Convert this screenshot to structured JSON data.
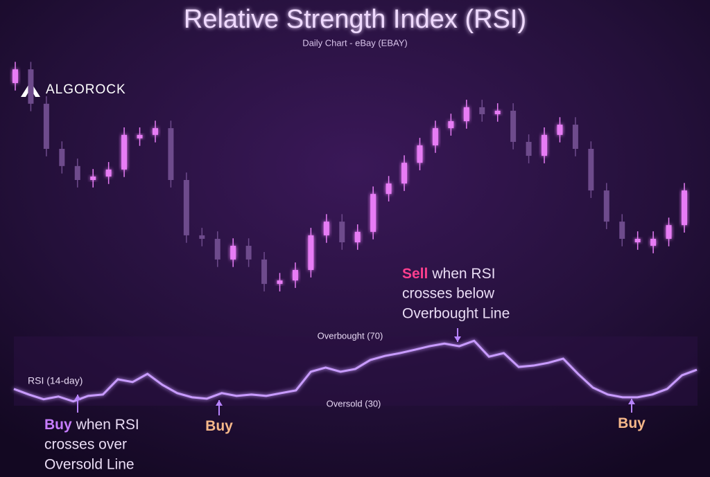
{
  "brand": "ALGOROCK",
  "chart_data": [
    {
      "type": "candlestick",
      "title": "Relative Strength Index (RSI)",
      "subtitle": "Daily Chart - eBay (EBAY)",
      "ylim": [
        0,
        100
      ],
      "up_color": "#e77cf5",
      "down_color": "#6e4b8c",
      "open": [
        88.9,
        94.4,
        80.6,
        62.5,
        55.6,
        50,
        51.4,
        54.2,
        66.7,
        68.1,
        70.8,
        50,
        27.8,
        26.4,
        18.1,
        23.6,
        18.1,
        8.3,
        9.7,
        13.9,
        27.8,
        33.3,
        25,
        29.2,
        44.4,
        48.6,
        56.9,
        63.9,
        70.8,
        73.6,
        79.2,
        76.4,
        77.8,
        65.3,
        59.7,
        68.1,
        72.2,
        62.5,
        45.8,
        33.3,
        25,
        23.6,
        26.4,
        31.9
      ],
      "high": [
        97.4,
        97.4,
        83.6,
        65.5,
        58.6,
        54.4,
        57.2,
        71.1,
        71.1,
        73.8,
        73.8,
        53,
        30.8,
        29.4,
        26.6,
        26.6,
        21.1,
        12.7,
        16.9,
        30.8,
        36.3,
        36.3,
        32.2,
        47.4,
        51.6,
        59.9,
        66.9,
        73.8,
        76.6,
        82.2,
        82.2,
        80.8,
        80.8,
        68.3,
        71.1,
        75.2,
        75.2,
        65.5,
        48.8,
        36.3,
        29.4,
        29.4,
        34.9,
        48.8
      ],
      "low": [
        85.9,
        77.6,
        59.5,
        52.6,
        47,
        47,
        48.4,
        51.2,
        63.7,
        65.1,
        47,
        24.8,
        23.4,
        15.1,
        15.1,
        15.1,
        5.3,
        5.3,
        6.7,
        10.9,
        24.8,
        22,
        22,
        26.2,
        41.4,
        45.6,
        53.9,
        60.9,
        67.8,
        70.6,
        73.4,
        73.4,
        62.3,
        56.7,
        56.7,
        65.1,
        59.5,
        42.8,
        30.3,
        23.4,
        22,
        20.6,
        23.4,
        28.9
      ],
      "close": [
        94.4,
        80.6,
        62.5,
        55.6,
        50,
        51.4,
        54.2,
        68.1,
        68.1,
        70.8,
        50,
        27.8,
        26.4,
        18.1,
        23.6,
        18.1,
        8.3,
        9.7,
        13.9,
        27.8,
        33.3,
        25,
        29.2,
        44.4,
        48.6,
        56.9,
        63.9,
        70.8,
        73.6,
        79.2,
        76.4,
        77.8,
        65.3,
        59.7,
        68.1,
        72.2,
        62.5,
        45.8,
        33.3,
        26.4,
        26.4,
        26.4,
        31.9,
        45.8
      ]
    },
    {
      "type": "line",
      "ylim": [
        20,
        80
      ],
      "series": [
        {
          "name": "RSI (14-day)",
          "color": "#c89bff",
          "values": [
            35.5,
            31.1,
            27.3,
            29.5,
            25.6,
            30,
            31.1,
            43.2,
            41,
            47.5,
            38.8,
            32.2,
            28.9,
            27.8,
            32.2,
            30,
            31.1,
            30,
            32.2,
            34.4,
            49.2,
            52.5,
            49.2,
            51.4,
            58.5,
            61.8,
            64,
            66.7,
            69.5,
            71.6,
            69.5,
            73.8,
            61.2,
            64,
            53,
            54.1,
            56.3,
            59.6,
            47.5,
            36.6,
            31.1,
            28.9,
            28.9,
            31.1,
            35.5,
            46.4,
            50.8
          ]
        }
      ],
      "reference_lines": [
        {
          "value": 70,
          "label": "Overbought (70)",
          "color": "#9b5cff"
        },
        {
          "value": 30,
          "label": "Oversold (30)",
          "color": "#9b5cff"
        }
      ],
      "annotations": [
        {
          "highlight": "Buy",
          "lines": [
            "when RSI",
            "crosses over",
            "Oversold Line"
          ],
          "color": "#c77dff"
        },
        {
          "highlight": "Buy",
          "lines": [],
          "color": "#f6b88a"
        },
        {
          "highlight": "Sell",
          "lines": [
            "when RSI",
            "crosses below",
            "Overbought Line"
          ],
          "color": "#ff3f8e"
        },
        {
          "highlight": "Buy",
          "lines": [],
          "color": "#f6b88a"
        }
      ]
    }
  ]
}
